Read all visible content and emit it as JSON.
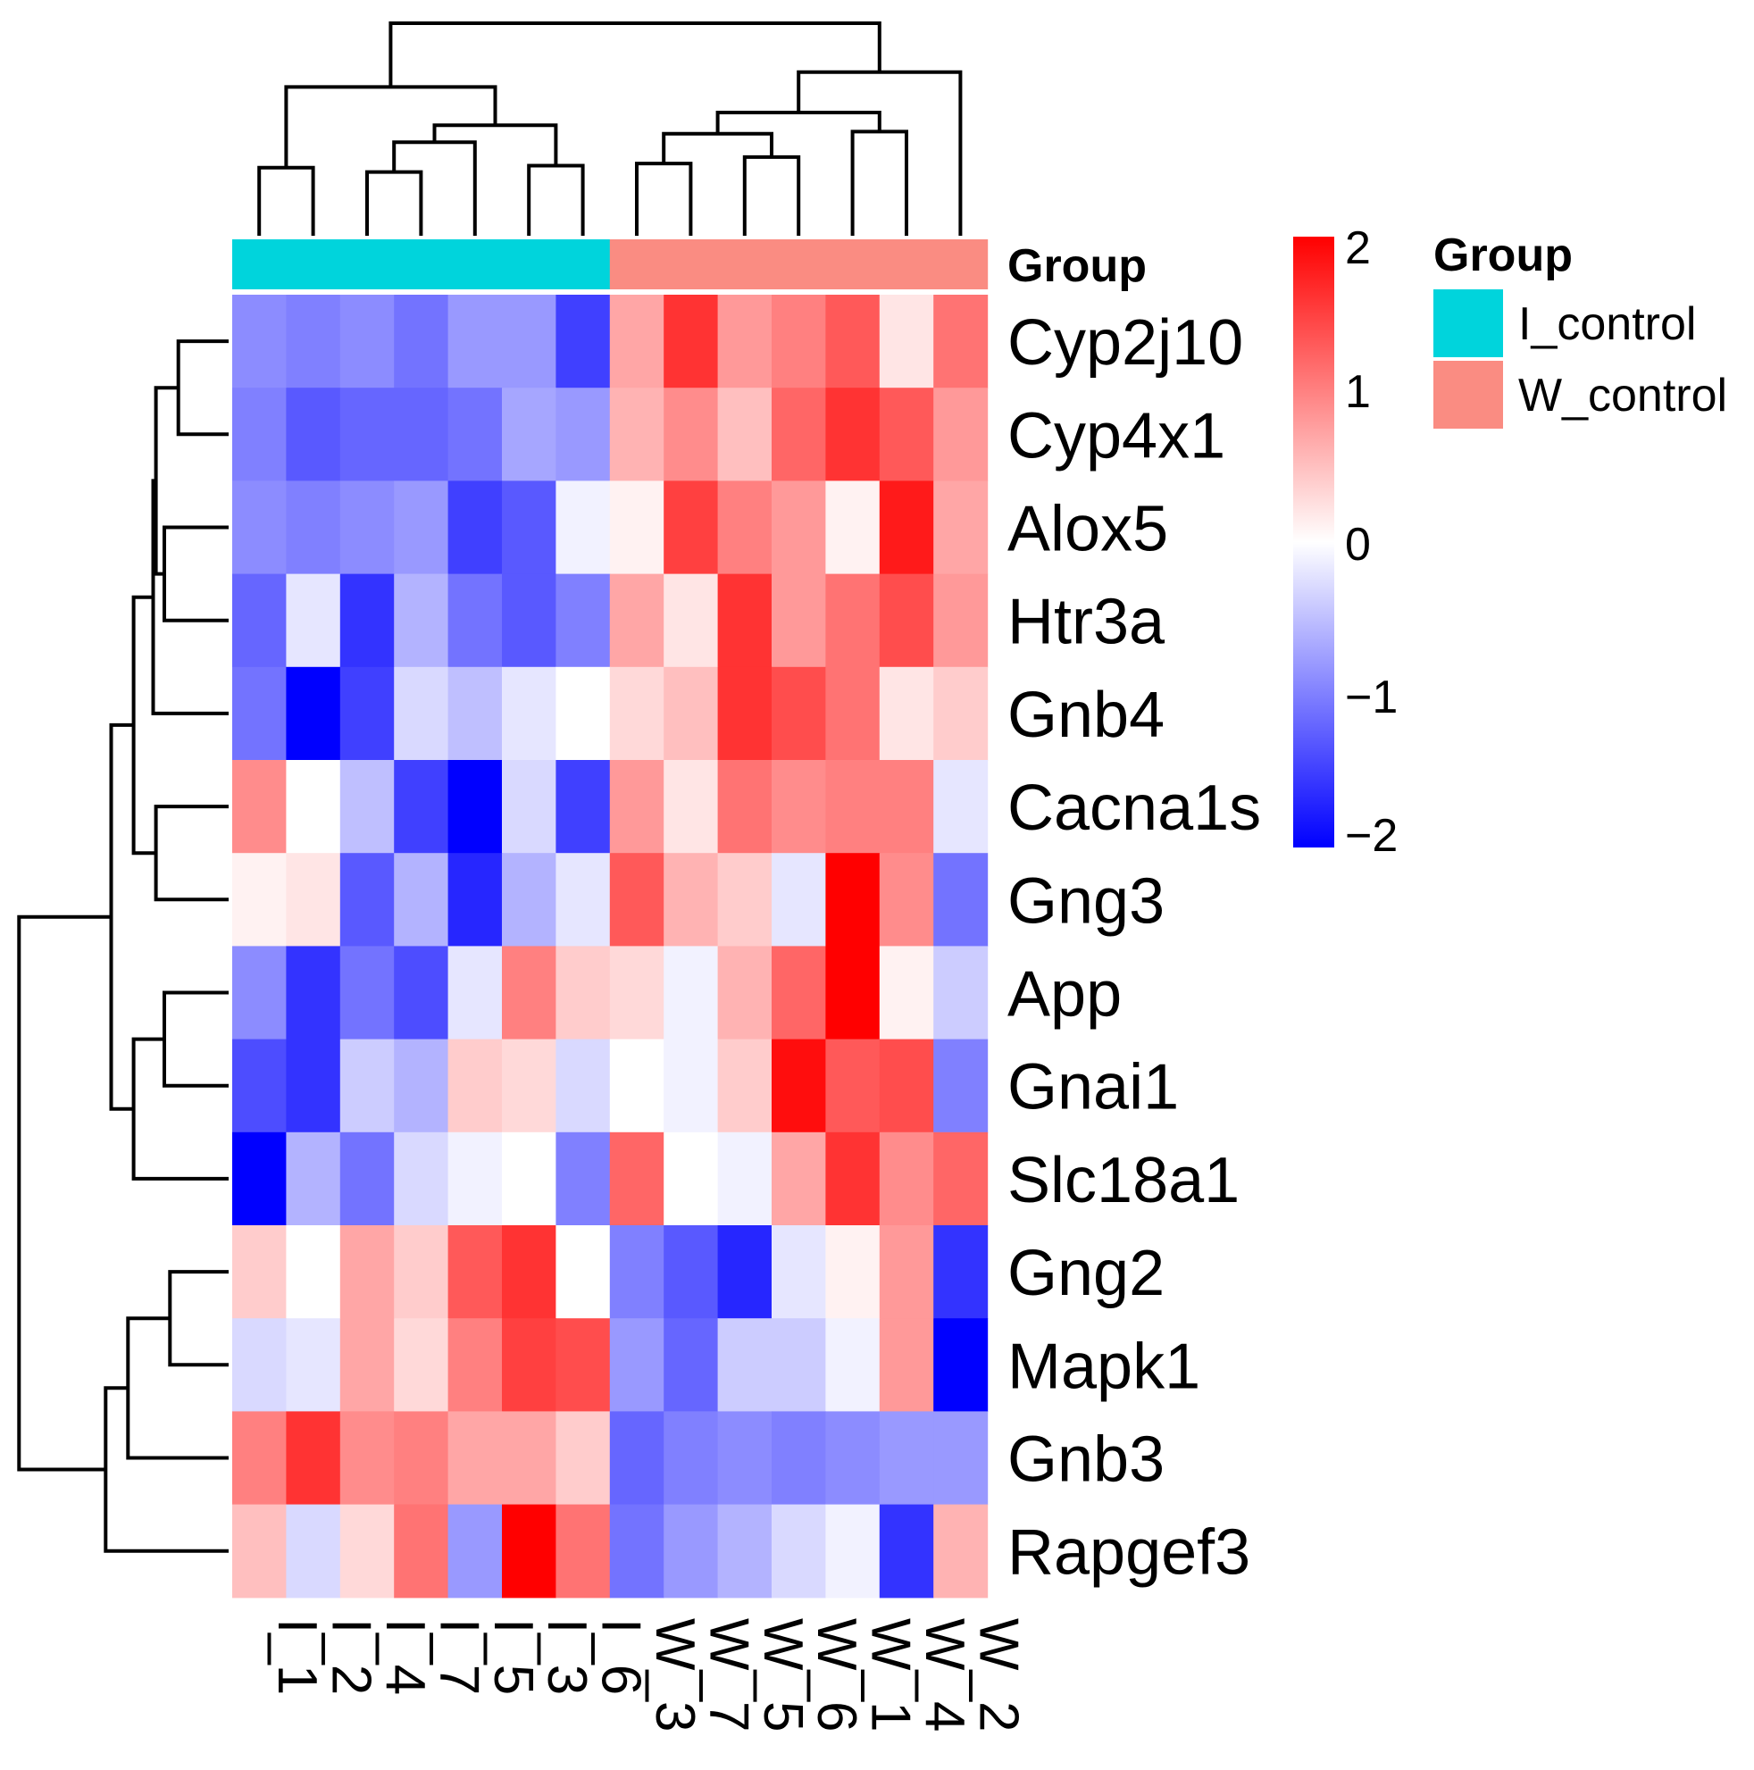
{
  "chart_data": {
    "type": "heatmap",
    "title": "",
    "columns": [
      "I_1",
      "I_2",
      "I_4",
      "I_7",
      "I_5",
      "I_3",
      "I_6",
      "W_3",
      "W_7",
      "W_5",
      "W_6",
      "W_1",
      "W_4",
      "W_2"
    ],
    "column_groups": [
      "I_control",
      "I_control",
      "I_control",
      "I_control",
      "I_control",
      "I_control",
      "I_control",
      "W_control",
      "W_control",
      "W_control",
      "W_control",
      "W_control",
      "W_control",
      "W_control"
    ],
    "rows": [
      "Cyp2j10",
      "Cyp4x1",
      "Alox5",
      "Htr3a",
      "Gnb4",
      "Cacna1s",
      "Gng3",
      "App",
      "Gnai1",
      "Slc18a1",
      "Gng2",
      "Mapk1",
      "Gnb3",
      "Rapgef3"
    ],
    "values": [
      [
        -0.9,
        -1.0,
        -0.9,
        -1.1,
        -0.8,
        -0.8,
        -1.5,
        0.7,
        1.6,
        0.8,
        1.0,
        1.3,
        0.2,
        1.1
      ],
      [
        -1.0,
        -1.3,
        -1.2,
        -1.2,
        -1.1,
        -0.7,
        -0.8,
        0.6,
        0.9,
        0.5,
        1.2,
        1.6,
        1.3,
        0.8
      ],
      [
        -0.9,
        -1.0,
        -0.9,
        -0.8,
        -1.5,
        -1.3,
        -0.1,
        0.1,
        1.5,
        1.0,
        0.8,
        0.1,
        1.8,
        0.7
      ],
      [
        -1.2,
        -0.2,
        -1.6,
        -0.6,
        -1.1,
        -1.3,
        -1.0,
        0.7,
        0.2,
        1.6,
        0.8,
        1.1,
        1.4,
        0.8
      ],
      [
        -1.1,
        -2.0,
        -1.5,
        -0.3,
        -0.5,
        -0.2,
        0.0,
        0.3,
        0.5,
        1.6,
        1.4,
        1.1,
        0.2,
        0.4
      ],
      [
        0.9,
        0.0,
        -0.5,
        -1.5,
        -2.0,
        -0.3,
        -1.5,
        0.8,
        0.2,
        1.1,
        0.9,
        1.0,
        1.0,
        -0.2
      ],
      [
        0.1,
        0.2,
        -1.3,
        -0.6,
        -1.7,
        -0.6,
        -0.2,
        1.3,
        0.6,
        0.4,
        -0.2,
        2.0,
        0.9,
        -1.1
      ],
      [
        -0.9,
        -1.6,
        -1.1,
        -1.4,
        -0.2,
        1.0,
        0.4,
        0.3,
        -0.1,
        0.6,
        1.2,
        2.0,
        0.1,
        -0.4
      ],
      [
        -1.4,
        -1.6,
        -0.4,
        -0.6,
        0.4,
        0.3,
        -0.3,
        0.0,
        -0.1,
        0.4,
        1.9,
        1.3,
        1.4,
        -1.0
      ],
      [
        -2.0,
        -0.6,
        -1.1,
        -0.3,
        -0.1,
        0.0,
        -1.0,
        1.2,
        0.0,
        -0.1,
        0.7,
        1.6,
        0.9,
        1.2
      ],
      [
        0.4,
        0.0,
        0.7,
        0.4,
        1.3,
        1.6,
        0.0,
        -1.0,
        -1.3,
        -1.7,
        -0.2,
        0.1,
        0.8,
        -1.6
      ],
      [
        -0.3,
        -0.2,
        0.7,
        0.3,
        1.0,
        1.5,
        1.4,
        -0.8,
        -1.2,
        -0.4,
        -0.4,
        -0.1,
        0.8,
        -2.0
      ],
      [
        1.0,
        1.6,
        0.9,
        1.0,
        0.7,
        0.7,
        0.4,
        -1.2,
        -1.0,
        -0.9,
        -1.0,
        -0.9,
        -0.8,
        -0.8
      ],
      [
        0.5,
        -0.3,
        0.3,
        1.1,
        -0.8,
        2.0,
        1.1,
        -1.1,
        -0.8,
        -0.6,
        -0.3,
        -0.1,
        -1.6,
        0.6
      ]
    ],
    "color_scale": {
      "min": -2,
      "max": 2,
      "colors": [
        "#0000ff",
        "#ffffff",
        "#ff0000"
      ],
      "ticks": [
        "2",
        "1",
        "0",
        "−1",
        "−2"
      ]
    },
    "group_annotation": {
      "label": "Group",
      "legend_title": "Group",
      "levels": [
        {
          "name": "I_control",
          "color": "#00d4dc"
        },
        {
          "name": "W_control",
          "color": "#fa8c82"
        }
      ]
    },
    "row_dendrogram": true,
    "column_dendrogram": true,
    "legend_position": "right"
  }
}
